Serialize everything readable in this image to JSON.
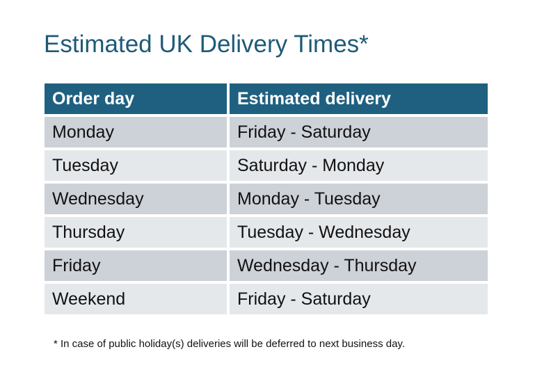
{
  "title": "Estimated UK Delivery Times*",
  "table": {
    "headers": [
      "Order day",
      "Estimated delivery"
    ],
    "rows": [
      [
        "Monday",
        "Friday - Saturday"
      ],
      [
        "Tuesday",
        "Saturday - Monday"
      ],
      [
        "Wednesday",
        "Monday - Tuesday"
      ],
      [
        "Thursday",
        "Tuesday - Wednesday"
      ],
      [
        "Friday",
        "Wednesday - Thursday"
      ],
      [
        "Weekend",
        "Friday - Saturday"
      ]
    ]
  },
  "footnote": "* In case of public holiday(s) deliveries will be deferred to next business day.",
  "colors": {
    "header": "#1f6080",
    "title": "#1f5a78",
    "row_dark": "#cdd1d8",
    "row_light": "#e5e8eb"
  }
}
